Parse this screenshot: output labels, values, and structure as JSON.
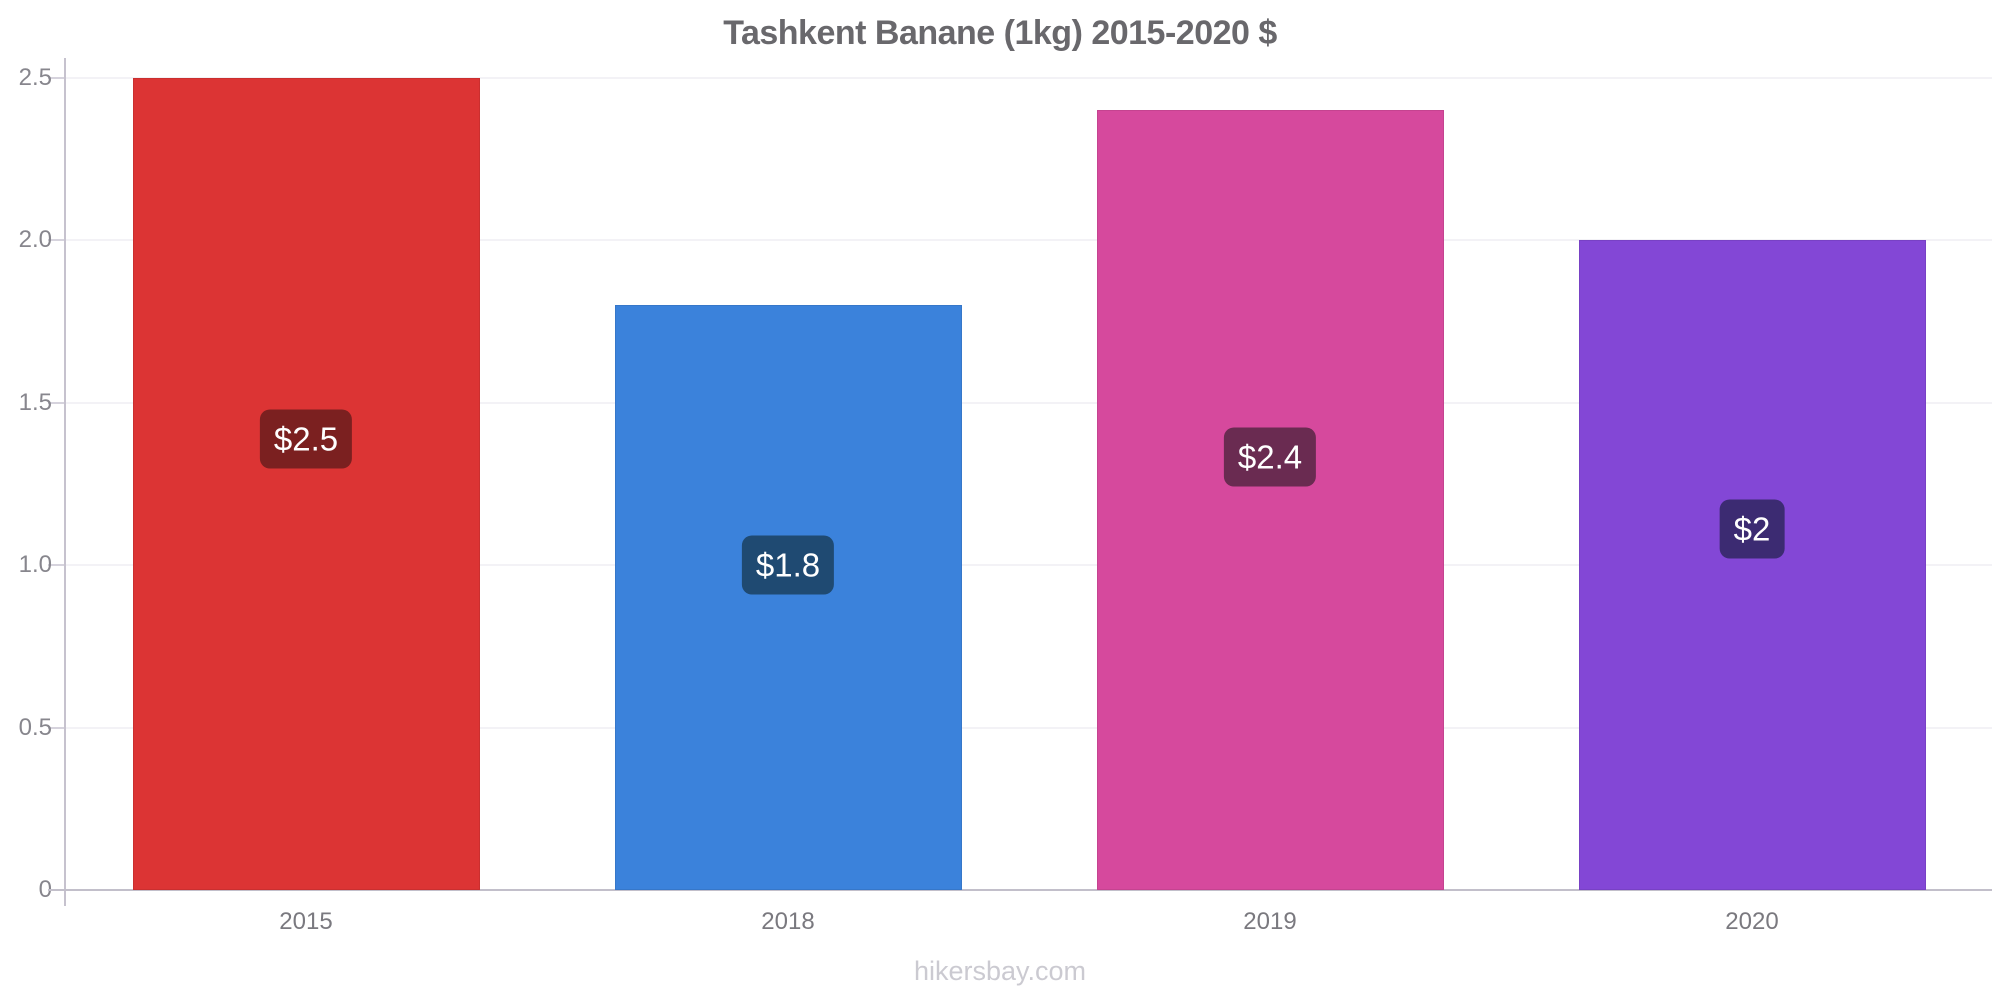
{
  "chart_data": {
    "type": "bar",
    "title": "Tashkent Banane (1kg) 2015-2020 $",
    "categories": [
      "2015",
      "2018",
      "2019",
      "2020"
    ],
    "values": [
      2.5,
      1.8,
      2.4,
      2
    ],
    "data_labels": [
      "$2.5",
      "$1.8",
      "$2.4",
      "$2"
    ],
    "bar_colors": [
      "#dc3434",
      "#3b82db",
      "#d6499d",
      "#8347d6"
    ],
    "label_bg_colors": [
      "#7b2020",
      "#1f4a72",
      "#6a2b51",
      "#3c2b72"
    ],
    "label_text_color": "#ffffff",
    "xlabel": "",
    "ylabel": "",
    "ylim": [
      0,
      2.5
    ],
    "yticks": [
      {
        "label": "0",
        "value": 0
      },
      {
        "label": "0.5",
        "value": 0.5
      },
      {
        "label": "1.0",
        "value": 1
      },
      {
        "label": "1.5",
        "value": 1.5
      },
      {
        "label": "2.0",
        "value": 2
      },
      {
        "label": "2.5",
        "value": 2.5
      }
    ],
    "grid": true,
    "legend": false
  },
  "footer": {
    "text": "hikersbay.com"
  }
}
